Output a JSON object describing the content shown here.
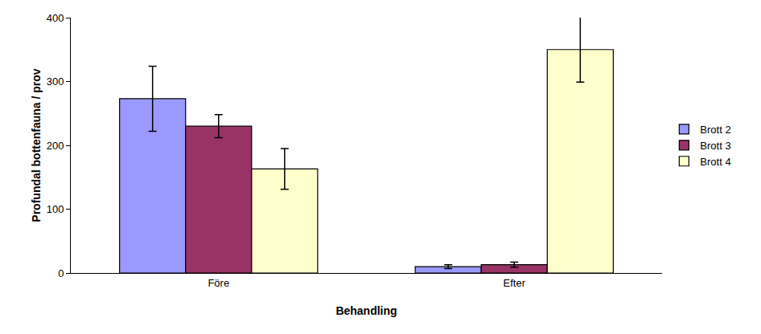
{
  "chart_data": {
    "type": "bar",
    "x_label": "Behandling",
    "y_label": "Profundal bottenfauna / prov",
    "categories": [
      "Före",
      "Efter"
    ],
    "series": [
      {
        "name": "Brott 2",
        "color": "#9999ff",
        "values": [
          273,
          10
        ],
        "errors": [
          51,
          3
        ]
      },
      {
        "name": "Brott 3",
        "color": "#993366",
        "values": [
          230,
          13
        ],
        "errors": [
          18,
          4
        ]
      },
      {
        "name": "Brott 4",
        "color": "#ffffcc",
        "values": [
          163,
          350
        ],
        "errors": [
          32,
          51
        ]
      }
    ],
    "ylim": [
      0,
      400
    ],
    "yticks": [
      0,
      100,
      200,
      300,
      400
    ],
    "grid": false,
    "legend": "right"
  }
}
